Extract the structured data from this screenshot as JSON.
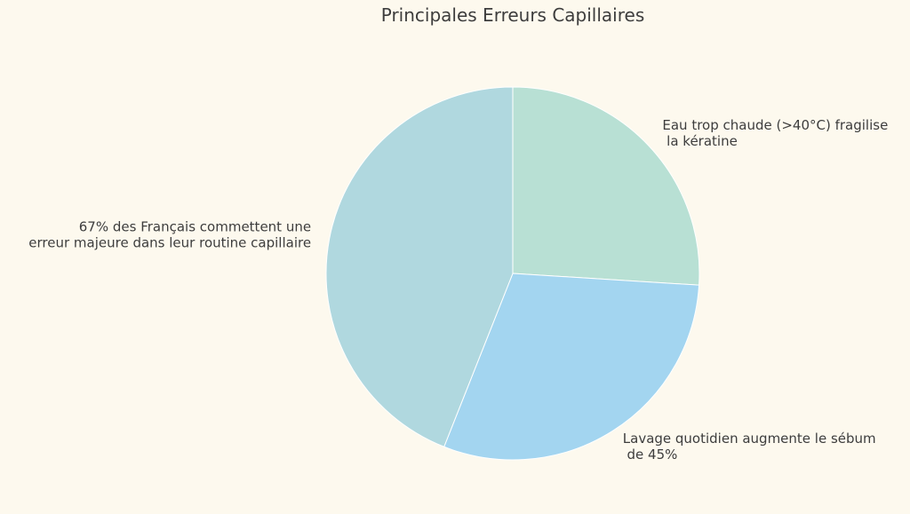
{
  "chart_data": {
    "type": "pie",
    "title": "Principales Erreurs Capillaires",
    "categories": [
      "Eau trop chaude (>40°C) fragilise\n la kératine",
      "Lavage quotidien augmente le sébum\n de 45%",
      "67% des Français commettent une\nerreur majeure dans leur routine capillaire"
    ],
    "values": [
      26,
      30,
      44
    ],
    "colors": [
      "#b8e0d4",
      "#a3d5f0",
      "#b0d8df"
    ]
  }
}
